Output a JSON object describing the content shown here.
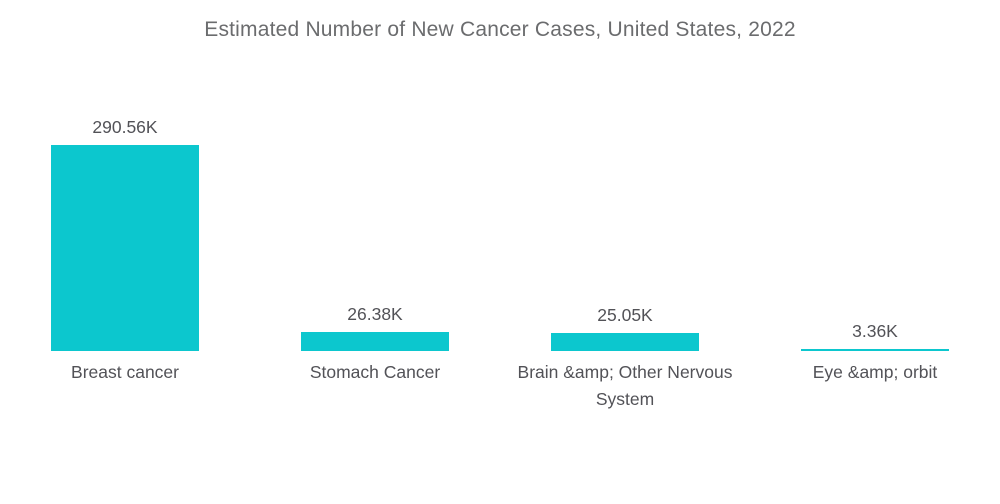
{
  "chart_data": {
    "type": "bar",
    "title": "Estimated Number of New Cancer Cases, United States, 2022",
    "categories": [
      "Breast cancer",
      "Stomach Cancer",
      "Brain &amp; Other Nervous System",
      "Eye &amp; orbit"
    ],
    "values": [
      290.56,
      26.38,
      25.05,
      3.36
    ],
    "value_labels": [
      "290.56K",
      "26.38K",
      "25.05K",
      "3.36K"
    ],
    "unit": "K",
    "ylim": [
      0,
      290.56
    ],
    "xlabel": "",
    "ylabel": "",
    "grid": "off",
    "axes": "hidden",
    "legend": "none",
    "value_label_position": "above-bar",
    "bar_color": "#0cc7ce",
    "label_color": "#525257",
    "title_color": "#6b6c6e",
    "background_color": "#ffffff"
  }
}
